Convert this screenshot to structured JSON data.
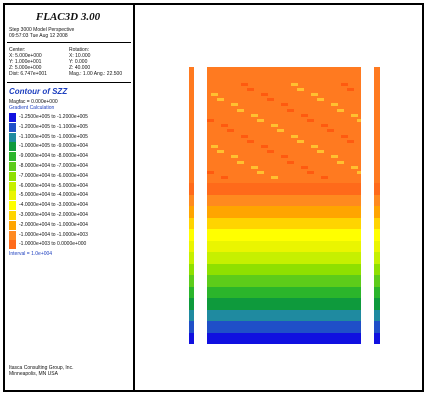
{
  "header": {
    "title": "FLAC3D 3.00",
    "step_line": "Step 3000 Model Perspective",
    "date_line": "09:57:03 Tue Aug 12 2008"
  },
  "view": {
    "center_label": "Center:",
    "center": [
      "X: 5.000e+000",
      "Y: 1.000e+001",
      "Z: 5.000e+000"
    ],
    "dist": "Dist: 6.747e+001",
    "rotation_label": "Rotation:",
    "rotation": [
      "X: 10.000",
      "Y: 0.000",
      "Z: 40.000"
    ],
    "mag": "Mag.: 1.00  Ang.: 22.500"
  },
  "contour": {
    "title": "Contour of SZZ",
    "magfac": "Magfac = 0.000e+000",
    "gradient": "Gradient Calculation",
    "levels": [
      "-1.2500e+005 to -1.2000e+005",
      "-1.2000e+005 to -1.1000e+005",
      "-1.1000e+005 to -1.0000e+005",
      "-1.0000e+005 to -9.0000e+004",
      "-9.0000e+004 to -8.0000e+004",
      "-8.0000e+004 to -7.0000e+004",
      "-7.0000e+004 to -6.0000e+004",
      "-6.0000e+004 to -5.0000e+004",
      "-5.0000e+004 to -4.0000e+004",
      "-4.0000e+004 to -3.0000e+004",
      "-3.0000e+004 to -2.0000e+004",
      "-2.0000e+004 to -1.0000e+004",
      "-1.0000e+004 to -1.0000e+003",
      "-1.0000e+003 to  0.0000e+000"
    ],
    "interval": "Interval = 1.0e+004"
  },
  "footer": {
    "company": "Itasca Consulting Group, Inc.",
    "city": "Minneapolis, MN USA"
  },
  "colors": {
    "bands": [
      "#1010e0",
      "#1f4fc8",
      "#1f8aa0",
      "#0e9a3c",
      "#2bb52b",
      "#5dcc1a",
      "#8fe000",
      "#c6f000",
      "#eaf500",
      "#ffff00",
      "#ffd400",
      "#ffa500",
      "#ff8a1f",
      "#ff6a1a"
    ],
    "top_block": "#ff7a20",
    "mesh_light": "#ffc030",
    "mesh_dark": "#ff5a10"
  }
}
